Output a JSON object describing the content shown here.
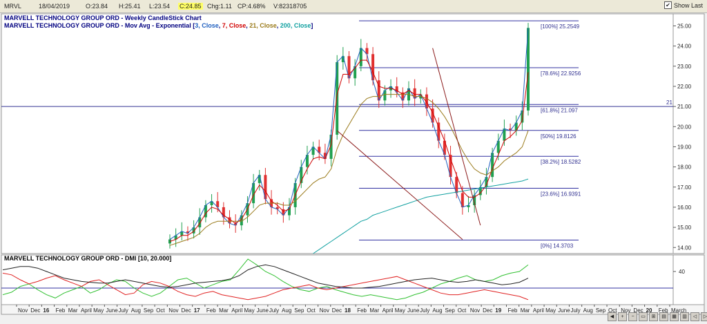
{
  "header": {
    "symbol": "MRVL",
    "date": "18/04/2019",
    "open": "O:23.84",
    "high": "H:25.41",
    "low": "L:23.54",
    "close": "C:24.85",
    "change": "Chg:1.11",
    "change_pct": "CP:4.68%",
    "volume": "V:82318705",
    "show_last_label": "Show Last",
    "show_last_checked": true
  },
  "chart_data": [
    {
      "type": "candlestick",
      "title": "MARVELL TECHNOLOGY GROUP ORD - Weekly CandleStick Chart",
      "subtitle_parts": [
        {
          "text": "MARVELL TECHNOLOGY GROUP ORD - Mov Avg - Exponential [",
          "color": "#000080"
        },
        {
          "text": "3, Close",
          "color": "#2060c0"
        },
        {
          "text": ", ",
          "color": "#000080"
        },
        {
          "text": "7, Close",
          "color": "#d00000"
        },
        {
          "text": ", ",
          "color": "#000080"
        },
        {
          "text": "21, Close",
          "color": "#9a7a1a"
        },
        {
          "text": ", ",
          "color": "#000080"
        },
        {
          "text": "200, Close",
          "color": "#10a0a0"
        },
        {
          "text": "]",
          "color": "#000080"
        }
      ],
      "ylim": [
        13.7,
        25.6
      ],
      "y_ticks": [
        14.0,
        15.0,
        16.0,
        17.0,
        18.0,
        19.0,
        20.0,
        21.0,
        22.0,
        23.0,
        24.0,
        25.0
      ],
      "grid": false,
      "x_labels": [
        "Nov",
        "Dec",
        "16",
        "Feb",
        "Mar",
        "April",
        "May",
        "June",
        "July",
        "Aug",
        "Sep",
        "Oct",
        "Nov",
        "Dec",
        "17",
        "Feb",
        "Mar",
        "April",
        "May",
        "June",
        "July",
        "Aug",
        "Sep",
        "Oct",
        "Nov",
        "Dec",
        "18",
        "Feb",
        "Mar",
        "April",
        "May",
        "June",
        "July",
        "Aug",
        "Sep",
        "Oct",
        "Nov",
        "Dec",
        "19",
        "Feb",
        "Mar",
        "April",
        "May",
        "June",
        "July",
        "Aug",
        "Sep",
        "Oct",
        "Nov",
        "Dec",
        "20",
        "Feb",
        "March"
      ],
      "bold_x_labels": [
        "16",
        "17",
        "18",
        "19",
        "20"
      ],
      "horizontal_line": {
        "value": 21.0,
        "label": "21"
      },
      "fibonacci": [
        {
          "label": "[100%] 25.2549",
          "value": 25.2549
        },
        {
          "label": "[78.6%] 22.9256",
          "value": 22.9256
        },
        {
          "label": "[61.8%] 21.097",
          "value": 21.097
        },
        {
          "label": "[50%] 19.8126",
          "value": 19.8126
        },
        {
          "label": "[38.2%] 18.5282",
          "value": 18.5282
        },
        {
          "label": "[23.6%] 16.9391",
          "value": 16.9391
        },
        {
          "label": "[0%] 14.3703",
          "value": 14.3703
        }
      ],
      "series": [
        {
          "name": "3, Close",
          "color": "#2060c0",
          "values": [
            14.4,
            14.6,
            14.8,
            14.7,
            15.0,
            15.5,
            16.1,
            16.3,
            16.0,
            15.5,
            15.2,
            15.1,
            15.6,
            16.2,
            17.2,
            17.6,
            16.4,
            16.0,
            15.9,
            15.6,
            16.0,
            17.2,
            18.0,
            18.6,
            19.0,
            18.7,
            18.4,
            19.6,
            23.2,
            23.5,
            22.4,
            23.0,
            23.9,
            23.6,
            22.3,
            21.3,
            21.8,
            22.0,
            21.7,
            21.3,
            21.9,
            21.4,
            21.6,
            20.9,
            20.2,
            19.3,
            18.6,
            17.5,
            16.7,
            16.0,
            16.1,
            16.6,
            17.0,
            17.5,
            18.7,
            19.3,
            19.9,
            19.8,
            20.2,
            20.8,
            24.9
          ]
        },
        {
          "name": "7, Close",
          "color": "#d00000",
          "values": [
            14.3,
            14.4,
            14.6,
            14.6,
            14.8,
            15.2,
            15.7,
            16.0,
            15.9,
            15.6,
            15.4,
            15.2,
            15.4,
            15.9,
            16.6,
            17.1,
            16.8,
            16.3,
            16.1,
            15.8,
            15.9,
            16.6,
            17.3,
            17.9,
            18.4,
            18.5,
            18.4,
            19.1,
            21.6,
            22.6,
            22.6,
            22.9,
            23.3,
            23.3,
            22.7,
            22.0,
            21.9,
            21.9,
            21.8,
            21.6,
            21.8,
            21.6,
            21.6,
            21.2,
            20.7,
            20.0,
            19.3,
            18.4,
            17.6,
            16.8,
            16.5,
            16.5,
            16.7,
            17.1,
            17.9,
            18.6,
            19.3,
            19.5,
            19.8,
            20.3,
            22.7
          ]
        },
        {
          "name": "21, Close",
          "color": "#9a7a1a",
          "values": [
            14.1,
            14.2,
            14.3,
            14.4,
            14.5,
            14.7,
            15.0,
            15.2,
            15.3,
            15.3,
            15.3,
            15.3,
            15.3,
            15.5,
            15.8,
            16.1,
            16.2,
            16.2,
            16.2,
            16.1,
            16.1,
            16.3,
            16.6,
            16.9,
            17.2,
            17.4,
            17.5,
            17.9,
            18.9,
            19.6,
            20.1,
            20.6,
            21.1,
            21.4,
            21.5,
            21.5,
            21.6,
            21.6,
            21.6,
            21.6,
            21.6,
            21.5,
            21.5,
            21.4,
            21.2,
            20.9,
            20.5,
            20.0,
            19.4,
            18.8,
            18.3,
            17.9,
            17.7,
            17.6,
            17.8,
            18.0,
            18.3,
            18.5,
            18.7,
            19.0,
            19.8
          ]
        },
        {
          "name": "200, Close",
          "color": "#10a0a0",
          "values": [
            null,
            null,
            null,
            null,
            null,
            null,
            null,
            null,
            null,
            null,
            null,
            null,
            null,
            null,
            null,
            null,
            null,
            null,
            null,
            null,
            null,
            null,
            null,
            null,
            13.7,
            13.9,
            14.1,
            14.3,
            14.5,
            14.7,
            14.9,
            15.1,
            15.3,
            15.4,
            15.6,
            15.7,
            15.8,
            15.9,
            16.0,
            16.1,
            16.2,
            16.3,
            16.4,
            16.5,
            16.55,
            16.6,
            16.65,
            16.7,
            16.75,
            16.8,
            16.85,
            16.9,
            16.95,
            17.0,
            17.05,
            17.1,
            17.15,
            17.2,
            17.25,
            17.3,
            17.4
          ]
        }
      ],
      "annotations": [
        {
          "type": "trendline",
          "from": [
            28,
            19.8
          ],
          "to": [
            49,
            14.4
          ],
          "color": "#8b1a1a"
        },
        {
          "type": "trendline",
          "from": [
            44,
            23.9
          ],
          "to": [
            52,
            15.1
          ],
          "color": "#8b1a1a"
        }
      ]
    },
    {
      "type": "line",
      "title": "MARVELL TECHNOLOGY GROUP ORD - DMI [10, 20.000]",
      "ylim": [
        0,
        60
      ],
      "y_ticks": [
        40
      ],
      "reference_line": 20,
      "series": [
        {
          "name": "+DI",
          "color": "#30c030",
          "values": [
            12,
            15,
            22,
            25,
            18,
            12,
            8,
            14,
            18,
            22,
            14,
            18,
            25,
            30,
            28,
            20,
            14,
            10,
            14,
            22,
            30,
            32,
            26,
            20,
            24,
            28,
            30,
            42,
            55,
            48,
            40,
            35,
            28,
            22,
            18,
            16,
            20,
            22,
            18,
            15,
            12,
            10,
            12,
            10,
            8,
            6,
            8,
            12,
            15,
            20,
            25,
            28,
            32,
            35,
            30,
            28,
            30,
            35,
            38,
            40,
            48
          ]
        },
        {
          "name": "-DI",
          "color": "#e02020",
          "values": [
            38,
            36,
            30,
            25,
            28,
            32,
            35,
            30,
            26,
            22,
            28,
            30,
            24,
            18,
            12,
            14,
            24,
            28,
            26,
            22,
            16,
            12,
            10,
            14,
            16,
            12,
            10,
            8,
            6,
            8,
            10,
            14,
            18,
            20,
            22,
            24,
            20,
            18,
            20,
            22,
            24,
            26,
            28,
            30,
            32,
            34,
            30,
            26,
            22,
            18,
            14,
            12,
            12,
            14,
            16,
            18,
            16,
            14,
            12,
            10,
            6
          ]
        },
        {
          "name": "ADX",
          "color": "#202020",
          "values": [
            42,
            44,
            46,
            46,
            44,
            40,
            36,
            32,
            30,
            28,
            27,
            26,
            26,
            28,
            30,
            28,
            26,
            24,
            22,
            21,
            22,
            24,
            26,
            27,
            28,
            29,
            31,
            35,
            42,
            46,
            48,
            46,
            42,
            38,
            34,
            30,
            26,
            24,
            22,
            21,
            20,
            20,
            21,
            22,
            24,
            26,
            28,
            30,
            31,
            32,
            30,
            28,
            27,
            28,
            30,
            28,
            26,
            24,
            25,
            27,
            32
          ]
        }
      ]
    }
  ]
}
